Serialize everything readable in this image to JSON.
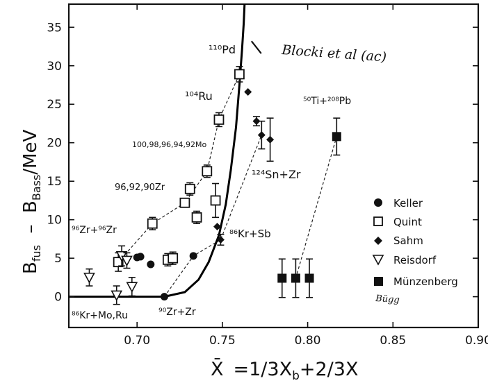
{
  "chart_data": {
    "type": "scatter",
    "xlabel": "X̄  =1/3X_b+2/3X",
    "ylabel": "B_fus − B_Bass/MeV",
    "xlim": [
      0.66,
      0.9
    ],
    "ylim": [
      -4,
      38
    ],
    "x_ticks": [
      "0.70",
      "0.75",
      "0.80",
      "0.85",
      "0.90"
    ],
    "x_tick_values": [
      0.7,
      0.75,
      0.8,
      0.85,
      0.9
    ],
    "y_ticks": [
      "0",
      "5",
      "10",
      "15",
      "20",
      "25",
      "30",
      "35"
    ],
    "y_tick_values": [
      0,
      5,
      10,
      15,
      20,
      25,
      30,
      35
    ],
    "grid": false,
    "legend_position": "right",
    "series": [
      {
        "name": "Keller",
        "marker": "circle-filled",
        "points": [
          {
            "x": 0.7,
            "y": 5.1
          },
          {
            "x": 0.702,
            "y": 5.2
          },
          {
            "x": 0.708,
            "y": 4.2
          },
          {
            "x": 0.716,
            "y": 0.0
          },
          {
            "x": 0.733,
            "y": 5.3
          }
        ]
      },
      {
        "name": "Quint",
        "marker": "square-open",
        "points": [
          {
            "x": 0.689,
            "y": 4.5,
            "err": 1.2
          },
          {
            "x": 0.709,
            "y": 9.5,
            "err": 0.8
          },
          {
            "x": 0.718,
            "y": 4.8,
            "err": 0.8
          },
          {
            "x": 0.721,
            "y": 5.0,
            "err": 0.8
          },
          {
            "x": 0.728,
            "y": 12.2
          },
          {
            "x": 0.731,
            "y": 14.0,
            "err": 0.8
          },
          {
            "x": 0.735,
            "y": 10.3,
            "err": 0.8
          },
          {
            "x": 0.741,
            "y": 16.3,
            "err": 0.8
          },
          {
            "x": 0.746,
            "y": 12.5,
            "err": 2.2
          },
          {
            "x": 0.748,
            "y": 23.0,
            "err": 0.9
          },
          {
            "x": 0.76,
            "y": 28.9,
            "err": 1.0
          }
        ]
      },
      {
        "name": "Sahm",
        "marker": "diamond-filled",
        "points": [
          {
            "x": 0.747,
            "y": 9.1
          },
          {
            "x": 0.749,
            "y": 7.4,
            "err": 0.7
          },
          {
            "x": 0.765,
            "y": 26.6
          },
          {
            "x": 0.77,
            "y": 22.8,
            "err": 0.6
          },
          {
            "x": 0.773,
            "y": 21.0,
            "err": 1.8
          },
          {
            "x": 0.778,
            "y": 20.4,
            "err": 2.8
          }
        ]
      },
      {
        "name": "Reisdorf",
        "marker": "triangle-down-open",
        "points": [
          {
            "x": 0.672,
            "y": 2.5,
            "err": 1.1
          },
          {
            "x": 0.688,
            "y": 0.2,
            "err": 1.2
          },
          {
            "x": 0.691,
            "y": 5.3,
            "err": 1.3
          },
          {
            "x": 0.694,
            "y": 4.7,
            "err": 1.0
          },
          {
            "x": 0.697,
            "y": 1.3,
            "err": 1.2
          }
        ]
      },
      {
        "name": "Münzenberg",
        "marker": "square-filled",
        "points": [
          {
            "x": 0.785,
            "y": 2.4,
            "err": 2.5
          },
          {
            "x": 0.793,
            "y": 2.4,
            "err": 2.5
          },
          {
            "x": 0.801,
            "y": 2.4,
            "err": 2.5
          },
          {
            "x": 0.817,
            "y": 20.8,
            "err": 2.4
          }
        ]
      }
    ],
    "dashed_lines": [
      [
        [
          0.689,
          4.5
        ],
        [
          0.709,
          9.5
        ],
        [
          0.728,
          12.2
        ],
        [
          0.741,
          16.3
        ],
        [
          0.748,
          23.0
        ],
        [
          0.76,
          28.9
        ]
      ],
      [
        [
          0.689,
          4.5
        ],
        [
          0.691,
          5.3
        ],
        [
          0.7,
          5.1
        ]
      ],
      [
        [
          0.716,
          0.0
        ],
        [
          0.733,
          5.3
        ],
        [
          0.749,
          7.4
        ],
        [
          0.773,
          21.0
        ]
      ],
      [
        [
          0.793,
          2.4
        ],
        [
          0.817,
          20.8
        ]
      ]
    ],
    "curve": {
      "threshold_x": 0.716,
      "samples": [
        [
          0.66,
          0.0
        ],
        [
          0.716,
          0.0
        ],
        [
          0.728,
          0.6
        ],
        [
          0.736,
          2.2
        ],
        [
          0.742,
          4.5
        ],
        [
          0.748,
          8.0
        ],
        [
          0.752,
          12.0
        ],
        [
          0.755,
          16.5
        ],
        [
          0.758,
          22.0
        ],
        [
          0.76,
          27.5
        ],
        [
          0.7615,
          32.0
        ],
        [
          0.7625,
          35.5
        ],
        [
          0.763,
          38.0
        ]
      ]
    },
    "annotations": {
      "pd": "¹¹⁰Pd",
      "ru": "¹⁰⁴Ru",
      "mo": "100,98,96,94,92Mo",
      "zr": "96,92,90Zr",
      "ti_pb": "⁵⁰Ti+²⁰⁸Pb",
      "sn_zr": "¹²⁴Sn+Zr",
      "kr_sb": "⁸⁶Kr+Sb",
      "zr_zr_96": "⁹⁶Zr+⁹⁶Zr",
      "kr_mo_ru": "⁸⁶Kr+Mo,Ru",
      "zr_zr_90": "⁹⁰Zr+Zr",
      "blocki": "Blocki et al (ac)",
      "bugg": "Bügg"
    },
    "x_axis_title": {
      "main": "X̄",
      "formula": "=1/3X",
      "sub_b": "b",
      "rest": "+2/3X"
    },
    "y_axis_title": {
      "b1": "B",
      "sub_fus": "fus",
      "dash": "  –  ",
      "b2": "B",
      "sub_bass": "Bass",
      "unit": "/MeV"
    }
  }
}
